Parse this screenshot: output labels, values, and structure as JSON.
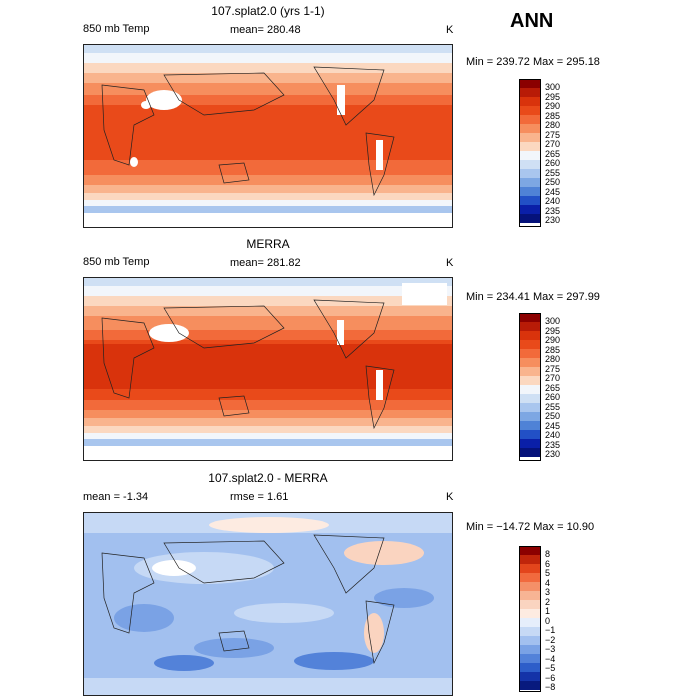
{
  "header": {
    "season": "ANN"
  },
  "panels": [
    {
      "title": "107.splat2.0 (yrs 1-1)",
      "left_label": "850 mb Temp",
      "center_label": "mean=  280.48",
      "units": "K",
      "minmax": "Min = 239.72  Max = 295.18",
      "ticks": [
        "300",
        "295",
        "290",
        "285",
        "280",
        "275",
        "270",
        "265",
        "260",
        "255",
        "250",
        "245",
        "240",
        "235",
        "230"
      ]
    },
    {
      "title": "MERRA",
      "left_label": "850 mb Temp",
      "center_label": "mean=  281.82",
      "units": "K",
      "minmax": "Min = 234.41  Max = 297.99",
      "ticks": [
        "300",
        "295",
        "290",
        "285",
        "280",
        "275",
        "270",
        "265",
        "260",
        "255",
        "250",
        "245",
        "240",
        "235",
        "230"
      ]
    },
    {
      "title": "107.splat2.0 - MERRA",
      "left_label": "mean =   -1.34",
      "center_label": "rmse =    1.61",
      "units": "K",
      "minmax": "Min = −14.72  Max =   10.90",
      "ticks": [
        "8",
        "6",
        "5",
        "4",
        "3",
        "2",
        "1",
        "0",
        "−1",
        "−2",
        "−3",
        "−4",
        "−5",
        "−6",
        "−8"
      ]
    }
  ],
  "colors": {
    "abs_scale": [
      "#8b0000",
      "#b81b07",
      "#d9330c",
      "#e94a1a",
      "#f26a3a",
      "#f68e5e",
      "#f9b48d",
      "#fbd8c0",
      "#f2f6fb",
      "#cfe0f4",
      "#a9c6ee",
      "#7da7e3",
      "#4f82d6",
      "#2250c6",
      "#0a1fa8",
      "#05127a"
    ],
    "diff_scale": [
      "#8b0000",
      "#c0250b",
      "#e3451c",
      "#f16a3e",
      "#f49068",
      "#f7b494",
      "#fad4c0",
      "#fdebe1",
      "#e6eefb",
      "#c6d9f5",
      "#a2c0ef",
      "#7aa2e5",
      "#5382d9",
      "#2d5ec9",
      "#1433a8",
      "#081a7e"
    ]
  },
  "chart_data": [
    {
      "type": "heatmap",
      "title": "107.splat2.0 (yrs 1-1)",
      "variable": "850 mb Temp",
      "units": "K",
      "mean": 280.48,
      "min": 239.72,
      "max": 295.18,
      "contour_levels": [
        230,
        235,
        240,
        245,
        250,
        255,
        260,
        265,
        270,
        275,
        280,
        285,
        290,
        295,
        300
      ]
    },
    {
      "type": "heatmap",
      "title": "MERRA",
      "variable": "850 mb Temp",
      "units": "K",
      "mean": 281.82,
      "min": 234.41,
      "max": 297.99,
      "contour_levels": [
        230,
        235,
        240,
        245,
        250,
        255,
        260,
        265,
        270,
        275,
        280,
        285,
        290,
        295,
        300
      ]
    },
    {
      "type": "heatmap",
      "title": "107.splat2.0 - MERRA",
      "units": "K",
      "mean": -1.34,
      "rmse": 1.61,
      "min": -14.72,
      "max": 10.9,
      "contour_levels": [
        -8,
        -6,
        -5,
        -4,
        -3,
        -2,
        -1,
        0,
        1,
        2,
        3,
        4,
        5,
        6,
        8
      ]
    }
  ]
}
